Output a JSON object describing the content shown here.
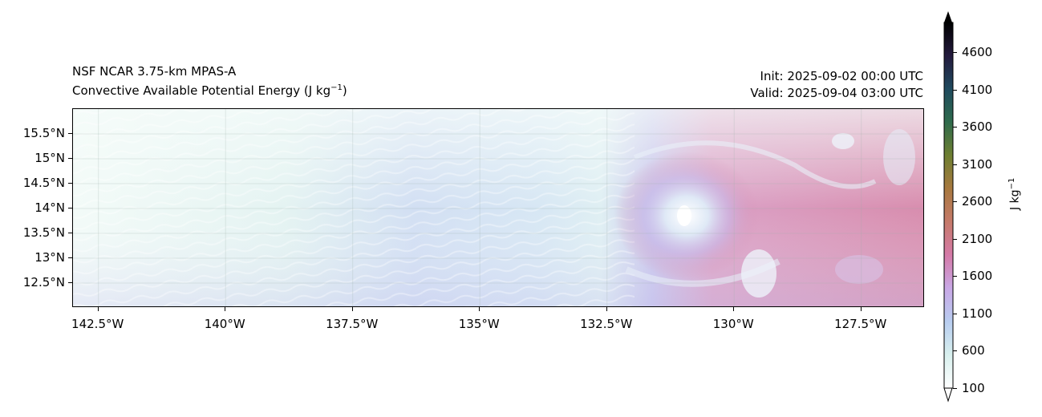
{
  "title": {
    "line1": "NSF NCAR 3.75-km MPAS-A",
    "line2_text": "Convective Available Potential Energy (J kg",
    "line2_sup": "−1",
    "line2_end": ")",
    "init": "Init: 2025-09-02 00:00 UTC",
    "valid": "Valid: 2025-09-04 03:00 UTC"
  },
  "map": {
    "lon_ticks": [
      "142.5°W",
      "140°W",
      "137.5°W",
      "135°W",
      "132.5°W",
      "130°W",
      "127.5°W"
    ],
    "lon_values": [
      -142.5,
      -140,
      -137.5,
      -135,
      -132.5,
      -130,
      -127.5
    ],
    "lon_range": [
      -143.0,
      -126.25
    ],
    "lat_ticks": [
      "15.5°N",
      "15°N",
      "14.5°N",
      "14°N",
      "13.5°N",
      "13°N",
      "12.5°N"
    ],
    "lat_values": [
      15.5,
      15,
      14.5,
      14,
      13.5,
      13,
      12.5
    ],
    "lat_range": [
      12.0,
      16.0
    ]
  },
  "colorbar": {
    "label": "J kg",
    "label_sup": "−1",
    "ticks": [
      "100",
      "600",
      "1100",
      "1600",
      "2100",
      "2600",
      "3100",
      "3600",
      "4100",
      "4600"
    ],
    "tick_values": [
      100,
      600,
      1100,
      1600,
      2100,
      2600,
      3100,
      3600,
      4100,
      4600
    ],
    "range": [
      100,
      5000
    ],
    "colors": [
      "#ffffff",
      "#d8f0ee",
      "#b8cdf0",
      "#c9a8e6",
      "#d57aa8",
      "#c67a6a",
      "#a8793f",
      "#6e7f31",
      "#2f6b4c",
      "#1f4a5e",
      "#231a3d",
      "#000000"
    ]
  }
}
